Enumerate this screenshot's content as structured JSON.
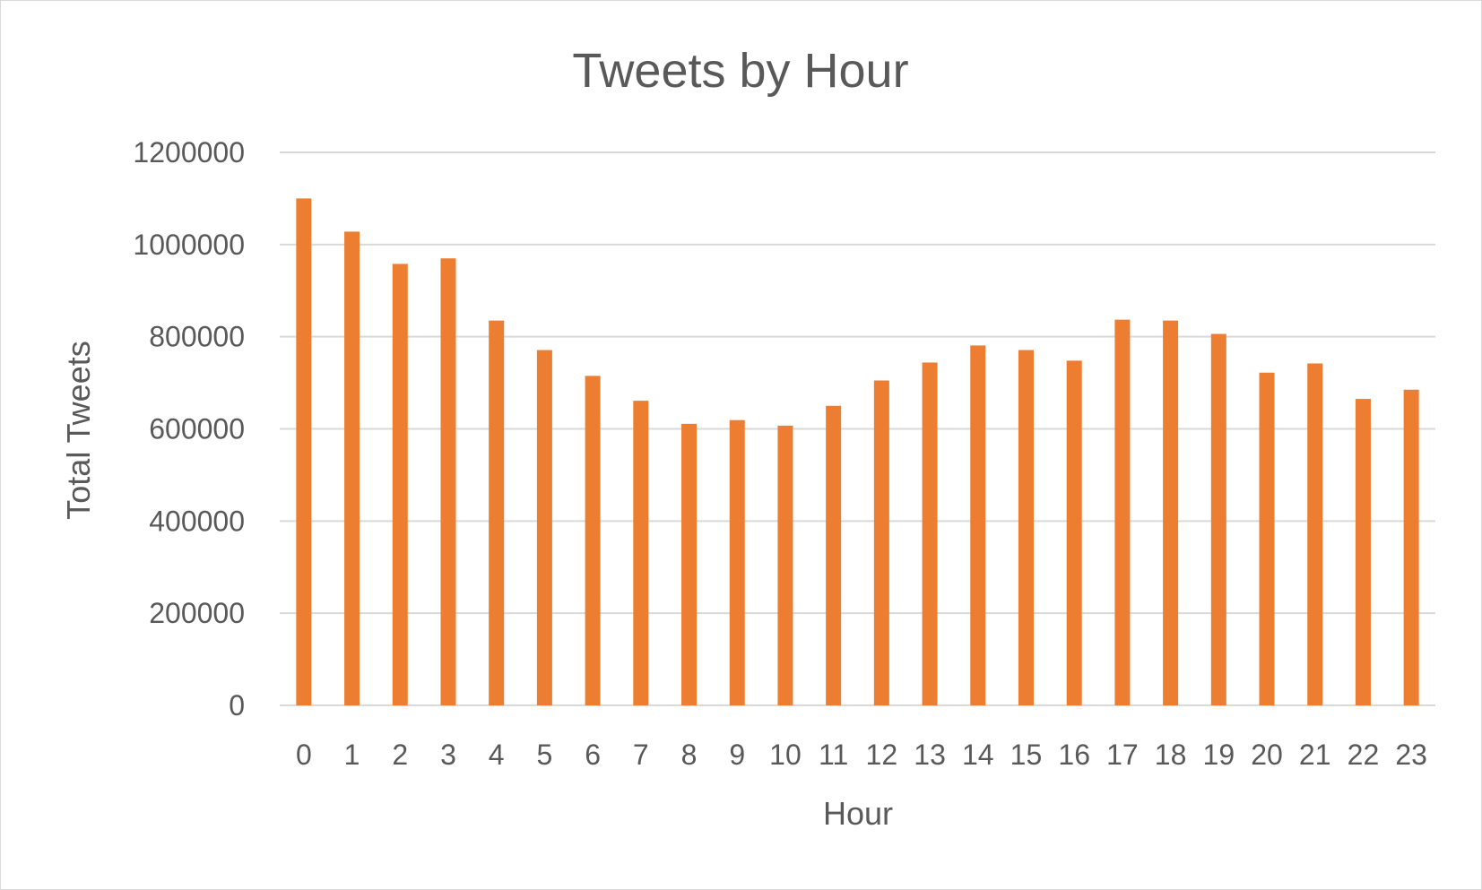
{
  "chart_data": {
    "type": "bar",
    "title": "Tweets by Hour",
    "xlabel": "Hour",
    "ylabel": "Total Tweets",
    "categories": [
      "0",
      "1",
      "2",
      "3",
      "4",
      "5",
      "6",
      "7",
      "8",
      "9",
      "10",
      "11",
      "12",
      "13",
      "14",
      "15",
      "16",
      "17",
      "18",
      "19",
      "20",
      "21",
      "22",
      "23"
    ],
    "series": [
      {
        "values": [
          1100000,
          1028000,
          958000,
          970000,
          835000,
          771000,
          715000,
          661000,
          611000,
          619000,
          607000,
          650000,
          705000,
          744000,
          781000,
          771000,
          748000,
          837000,
          835000,
          806000,
          722000,
          742000,
          665000,
          685000
        ]
      }
    ],
    "yticks": [
      "0",
      "200000",
      "400000",
      "600000",
      "800000",
      "1000000",
      "1200000"
    ],
    "ylim": [
      0,
      1200000
    ],
    "grid": true,
    "legend": "none",
    "bar_color": "#ED7D31",
    "grid_color": "#d9d9d9"
  }
}
